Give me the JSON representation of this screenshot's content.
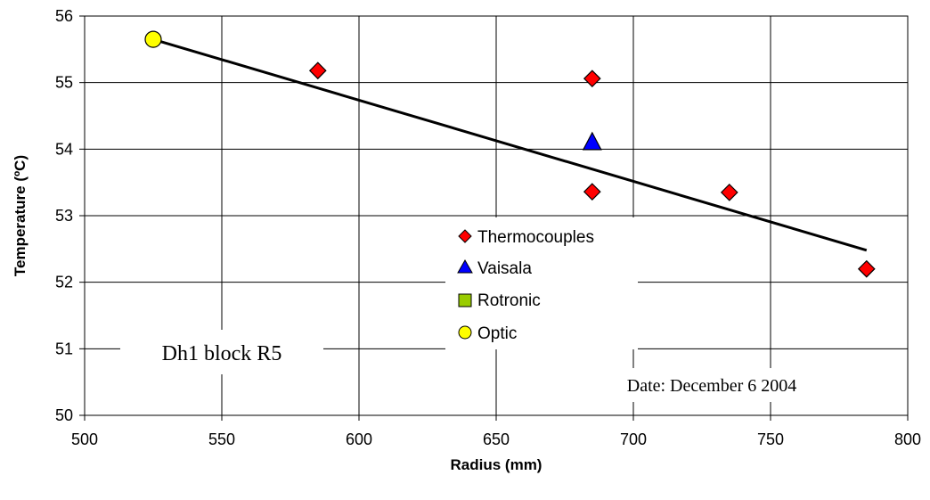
{
  "chart_data": {
    "type": "scatter",
    "xlabel": "Radius (mm)",
    "ylabel": "Temperature (ºC)",
    "xlim": [
      500,
      800
    ],
    "ylim": [
      50,
      56
    ],
    "xticks": [
      500,
      550,
      600,
      650,
      700,
      750,
      800
    ],
    "yticks": [
      50,
      51,
      52,
      53,
      54,
      55,
      56
    ],
    "grid": true,
    "series": [
      {
        "name": "Thermocouples",
        "marker": "diamond",
        "color": "#ff0000",
        "x": [
          585,
          685,
          685,
          735,
          785
        ],
        "y": [
          55.18,
          55.06,
          53.36,
          53.35,
          52.2
        ]
      },
      {
        "name": "Vaisala",
        "marker": "triangle",
        "color": "#0000ff",
        "x": [
          685
        ],
        "y": [
          54.1
        ]
      },
      {
        "name": "Rotronic",
        "marker": "square",
        "color": "#99cc00",
        "x": [],
        "y": []
      },
      {
        "name": "Optic",
        "marker": "circle",
        "color": "#ffff00",
        "x": [
          525
        ],
        "y": [
          55.65
        ]
      }
    ],
    "trendline": {
      "x": [
        525,
        785
      ],
      "y": [
        55.65,
        52.48
      ],
      "color": "#000000"
    },
    "legend_position": "center",
    "annotations": {
      "block_label": "Dh1 block R5",
      "date_label": "Date: December 6 2004"
    }
  }
}
